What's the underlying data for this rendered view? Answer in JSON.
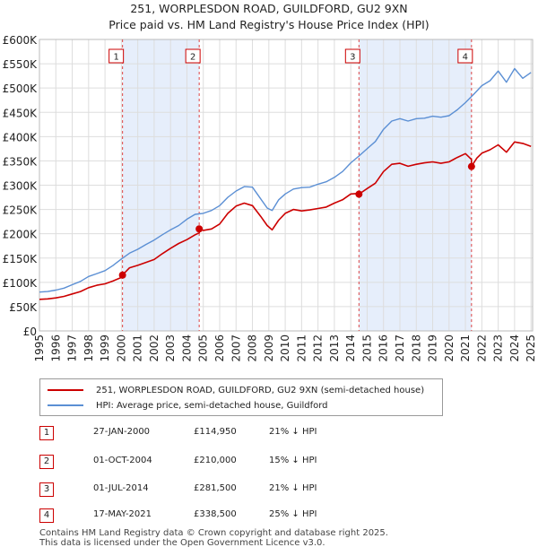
{
  "title_line1": "251, WORPLESDON ROAD, GUILDFORD, GU2 9XN",
  "title_line2": "Price paid vs. HM Land Registry's House Price Index (HPI)",
  "colors": {
    "red": "#cc0000",
    "blue": "#5b8fd4",
    "shade": "#e6eefb",
    "grid": "#dddddd",
    "vline": "#dd4444"
  },
  "chart_data": {
    "type": "line",
    "x_ticks": [
      "1995",
      "1996",
      "1997",
      "1998",
      "1999",
      "2000",
      "2001",
      "2002",
      "2003",
      "2004",
      "2005",
      "2006",
      "2007",
      "2008",
      "2009",
      "2010",
      "2011",
      "2012",
      "2013",
      "2014",
      "2015",
      "2016",
      "2017",
      "2018",
      "2019",
      "2020",
      "2021",
      "2022",
      "2023",
      "2024",
      "2025"
    ],
    "y_ticks": [
      "£0",
      "£50K",
      "£100K",
      "£150K",
      "£200K",
      "£250K",
      "£300K",
      "£350K",
      "£400K",
      "£450K",
      "£500K",
      "£550K",
      "£600K"
    ],
    "xlim": [
      1995.0,
      2025.1
    ],
    "ylim": [
      0,
      600000
    ],
    "series": [
      {
        "name": "251, WORPLESDON ROAD, GUILDFORD, GU2 9XN (semi-detached house)",
        "x": [
          1995.0,
          1995.5,
          1996.0,
          1996.5,
          1997.0,
          1997.5,
          1998.0,
          1998.5,
          1999.0,
          1999.5,
          2000.07,
          2000.07,
          2000.5,
          2001.0,
          2001.5,
          2002.0,
          2002.5,
          2003.0,
          2003.5,
          2004.0,
          2004.5,
          2004.75,
          2004.75,
          2005.0,
          2005.5,
          2006.0,
          2006.5,
          2007.0,
          2007.5,
          2008.0,
          2008.5,
          2008.9,
          2009.2,
          2009.6,
          2010.0,
          2010.5,
          2011.0,
          2011.5,
          2012.0,
          2012.5,
          2013.0,
          2013.5,
          2014.0,
          2014.5,
          2014.5,
          2015.0,
          2015.5,
          2016.0,
          2016.5,
          2017.0,
          2017.5,
          2018.0,
          2018.5,
          2019.0,
          2019.5,
          2020.0,
          2020.5,
          2021.0,
          2021.37,
          2021.37,
          2021.7,
          2022.0,
          2022.5,
          2023.0,
          2023.5,
          2024.0,
          2024.5,
          2025.0
        ],
        "values": [
          65000,
          66000,
          68000,
          71000,
          76000,
          81000,
          89000,
          94000,
          97000,
          103000,
          111000,
          114950,
          130000,
          135000,
          141000,
          147000,
          159000,
          170000,
          180000,
          188000,
          198000,
          202000,
          210000,
          207000,
          210000,
          220000,
          242000,
          257000,
          263000,
          258000,
          236000,
          217000,
          208000,
          228000,
          242000,
          250000,
          247000,
          249000,
          252000,
          255000,
          263000,
          270000,
          282000,
          283000,
          281500,
          293000,
          304000,
          328000,
          343000,
          345000,
          339000,
          343000,
          346000,
          348000,
          345000,
          348000,
          357000,
          365000,
          353000,
          338500,
          356000,
          366000,
          373000,
          383000,
          368000,
          389000,
          386000,
          380000
        ]
      },
      {
        "name": "HPI: Average price, semi-detached house, Guildford",
        "x": [
          1995.0,
          1995.5,
          1996.0,
          1996.5,
          1997.0,
          1997.5,
          1998.0,
          1998.5,
          1999.0,
          1999.5,
          2000.0,
          2000.5,
          2001.0,
          2001.5,
          2002.0,
          2002.5,
          2003.0,
          2003.5,
          2004.0,
          2004.5,
          2005.0,
          2005.5,
          2006.0,
          2006.5,
          2007.0,
          2007.5,
          2008.0,
          2008.5,
          2008.9,
          2009.2,
          2009.6,
          2010.0,
          2010.5,
          2011.0,
          2011.5,
          2012.0,
          2012.5,
          2013.0,
          2013.5,
          2014.0,
          2014.5,
          2015.0,
          2015.5,
          2016.0,
          2016.5,
          2017.0,
          2017.5,
          2018.0,
          2018.5,
          2019.0,
          2019.5,
          2020.0,
          2020.5,
          2021.0,
          2021.5,
          2022.0,
          2022.5,
          2023.0,
          2023.5,
          2024.0,
          2024.5,
          2025.0
        ],
        "values": [
          80000,
          81000,
          84000,
          88000,
          95000,
          102000,
          112000,
          118000,
          124000,
          135000,
          148000,
          160000,
          168000,
          178000,
          187000,
          198000,
          208000,
          217000,
          230000,
          240000,
          242000,
          248000,
          258000,
          275000,
          288000,
          297000,
          296000,
          272000,
          253000,
          248000,
          270000,
          282000,
          292000,
          295000,
          296000,
          302000,
          307000,
          316000,
          328000,
          346000,
          360000,
          375000,
          390000,
          415000,
          432000,
          437000,
          432000,
          437000,
          438000,
          442000,
          440000,
          443000,
          455000,
          470000,
          487000,
          505000,
          515000,
          535000,
          512000,
          540000,
          520000,
          532000
        ]
      }
    ],
    "annotations": [
      {
        "label": "1",
        "x": 2000.07,
        "value": 114950
      },
      {
        "label": "2",
        "x": 2004.75,
        "value": 210000
      },
      {
        "label": "3",
        "x": 2014.5,
        "value": 281500
      },
      {
        "label": "4",
        "x": 2021.37,
        "value": 338500
      }
    ],
    "shaded_spans": [
      [
        2000.07,
        2004.75
      ],
      [
        2014.5,
        2021.37
      ]
    ]
  },
  "legend": {
    "red_label": "251, WORPLESDON ROAD, GUILDFORD, GU2 9XN (semi-detached house)",
    "blue_label": "HPI: Average price, semi-detached house, Guildford"
  },
  "transactions": [
    {
      "num": "1",
      "date": "27-JAN-2000",
      "price": "£114,950",
      "hpi": "21% ↓ HPI"
    },
    {
      "num": "2",
      "date": "01-OCT-2004",
      "price": "£210,000",
      "hpi": "15% ↓ HPI"
    },
    {
      "num": "3",
      "date": "01-JUL-2014",
      "price": "£281,500",
      "hpi": "21% ↓ HPI"
    },
    {
      "num": "4",
      "date": "17-MAY-2021",
      "price": "£338,500",
      "hpi": "25% ↓ HPI"
    }
  ],
  "footer_line1": "Contains HM Land Registry data © Crown copyright and database right 2025.",
  "footer_line2": "This data is licensed under the Open Government Licence v3.0."
}
